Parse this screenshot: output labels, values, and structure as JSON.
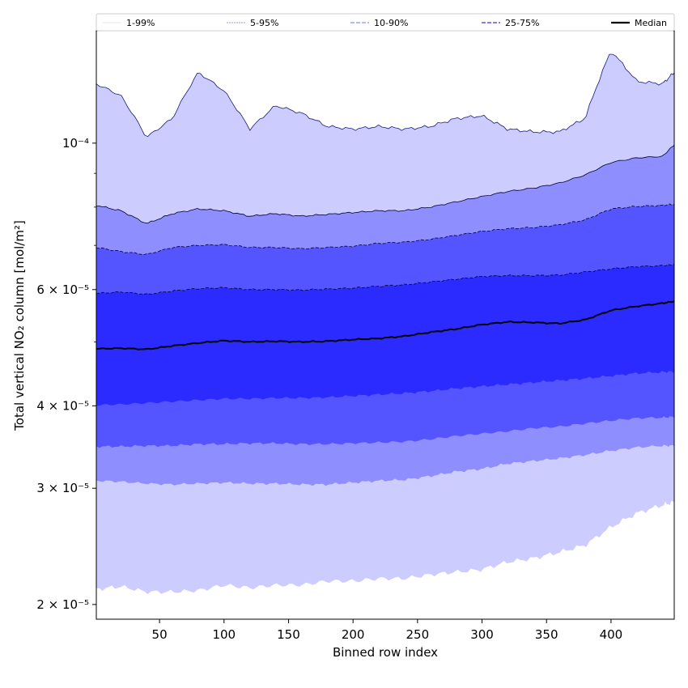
{
  "chart_data": {
    "type": "area",
    "title": "",
    "xlabel": "Binned row index",
    "ylabel": "Total vertical NO₂ column [mol/m²]",
    "xlim": [
      1,
      449
    ],
    "ylim": [
      1.9e-05,
      0.000148
    ],
    "yscale": "log",
    "grid": false,
    "legend_position": "top",
    "x_ticks": [
      50,
      100,
      150,
      200,
      250,
      300,
      350,
      400
    ],
    "y_ticks": [
      {
        "value": 2e-05,
        "label": "2 × 10⁻⁵"
      },
      {
        "value": 3e-05,
        "label": "3 × 10⁻⁵"
      },
      {
        "value": 4e-05,
        "label": "4 × 10⁻⁵"
      },
      {
        "value": 6e-05,
        "label": "6 × 10⁻⁵"
      },
      {
        "value": 0.0001,
        "label": "10⁻⁴"
      }
    ],
    "x": [
      1,
      20,
      40,
      60,
      80,
      100,
      120,
      140,
      160,
      180,
      200,
      220,
      240,
      260,
      280,
      300,
      320,
      340,
      360,
      380,
      400,
      420,
      440,
      449
    ],
    "series": [
      {
        "name": "1-99%",
        "color": "#ccccff",
        "lower": [
          2.11e-05,
          2.13e-05,
          2.09e-05,
          2.09e-05,
          2.1e-05,
          2.14e-05,
          2.12e-05,
          2.14e-05,
          2.14e-05,
          2.17e-05,
          2.17e-05,
          2.19e-05,
          2.19e-05,
          2.22e-05,
          2.24e-05,
          2.26e-05,
          2.32e-05,
          2.35e-05,
          2.4e-05,
          2.46e-05,
          2.62e-05,
          2.75e-05,
          2.83e-05,
          2.86e-05
        ],
        "upper": [
          0.000123,
          0.000118,
          0.000102,
          0.000109,
          0.000128,
          0.00012,
          0.000105,
          0.000114,
          0.000111,
          0.000106,
          0.000105,
          0.000106,
          0.000105,
          0.000106,
          0.000109,
          0.00011,
          0.000105,
          0.000104,
          0.000104,
          0.000109,
          0.000138,
          0.000124,
          0.000123,
          0.000128
        ]
      },
      {
        "name": "5-95%",
        "color": "#8e8eff",
        "lower": [
          3.08e-05,
          3.07e-05,
          3.05e-05,
          3.04e-05,
          3.05e-05,
          3.06e-05,
          3.05e-05,
          3.05e-05,
          3.04e-05,
          3.04e-05,
          3.06e-05,
          3.08e-05,
          3.09e-05,
          3.13e-05,
          3.18e-05,
          3.21e-05,
          3.27e-05,
          3.3e-05,
          3.33e-05,
          3.37e-05,
          3.42e-05,
          3.46e-05,
          3.48e-05,
          3.48e-05
        ],
        "upper": [
          8.05e-05,
          7.9e-05,
          7.55e-05,
          7.82e-05,
          7.95e-05,
          7.9e-05,
          7.75e-05,
          7.82e-05,
          7.75e-05,
          7.8e-05,
          7.85e-05,
          7.9e-05,
          7.9e-05,
          8e-05,
          8.15e-05,
          8.3e-05,
          8.45e-05,
          8.55e-05,
          8.7e-05,
          8.95e-05,
          9.35e-05,
          9.5e-05,
          9.55e-05,
          9.95e-05
        ]
      },
      {
        "name": "10-90%",
        "color": "#5555ff",
        "lower": [
          3.47e-05,
          3.47e-05,
          3.48e-05,
          3.48e-05,
          3.5e-05,
          3.5e-05,
          3.51e-05,
          3.51e-05,
          3.5e-05,
          3.5e-05,
          3.51e-05,
          3.52e-05,
          3.53e-05,
          3.56e-05,
          3.6e-05,
          3.63e-05,
          3.66e-05,
          3.7e-05,
          3.72e-05,
          3.76e-05,
          3.8e-05,
          3.83e-05,
          3.84e-05,
          3.85e-05
        ],
        "upper": [
          6.95e-05,
          6.85e-05,
          6.78e-05,
          6.95e-05,
          7e-05,
          7.02e-05,
          6.95e-05,
          6.95e-05,
          6.92e-05,
          6.95e-05,
          6.98e-05,
          7.05e-05,
          7.08e-05,
          7.15e-05,
          7.25e-05,
          7.35e-05,
          7.42e-05,
          7.45e-05,
          7.52e-05,
          7.65e-05,
          7.95e-05,
          8.02e-05,
          8.05e-05,
          8.08e-05
        ]
      },
      {
        "name": "25-75%",
        "color": "#2b2bff",
        "lower": [
          4.01e-05,
          4.02e-05,
          4.04e-05,
          4.06e-05,
          4.08e-05,
          4.1e-05,
          4.1e-05,
          4.11e-05,
          4.11e-05,
          4.12e-05,
          4.14e-05,
          4.16e-05,
          4.18e-05,
          4.21e-05,
          4.25e-05,
          4.28e-05,
          4.31e-05,
          4.34e-05,
          4.37e-05,
          4.4e-05,
          4.44e-05,
          4.48e-05,
          4.5e-05,
          4.51e-05
        ],
        "upper": [
          5.92e-05,
          5.95e-05,
          5.9e-05,
          5.97e-05,
          6.02e-05,
          6.04e-05,
          6e-05,
          6e-05,
          5.99e-05,
          6.01e-05,
          6.03e-05,
          6.07e-05,
          6.1e-05,
          6.16e-05,
          6.22e-05,
          6.28e-05,
          6.3e-05,
          6.3e-05,
          6.31e-05,
          6.38e-05,
          6.45e-05,
          6.5e-05,
          6.52e-05,
          6.55e-05
        ]
      },
      {
        "name": "Median",
        "color": "#000000",
        "values": [
          4.88e-05,
          4.89e-05,
          4.87e-05,
          4.93e-05,
          4.98e-05,
          5.02e-05,
          5e-05,
          5.01e-05,
          5e-05,
          5.01e-05,
          5.04e-05,
          5.06e-05,
          5.1e-05,
          5.17e-05,
          5.23e-05,
          5.31e-05,
          5.36e-05,
          5.35e-05,
          5.33e-05,
          5.4e-05,
          5.58e-05,
          5.66e-05,
          5.72e-05,
          5.76e-05
        ]
      }
    ]
  }
}
